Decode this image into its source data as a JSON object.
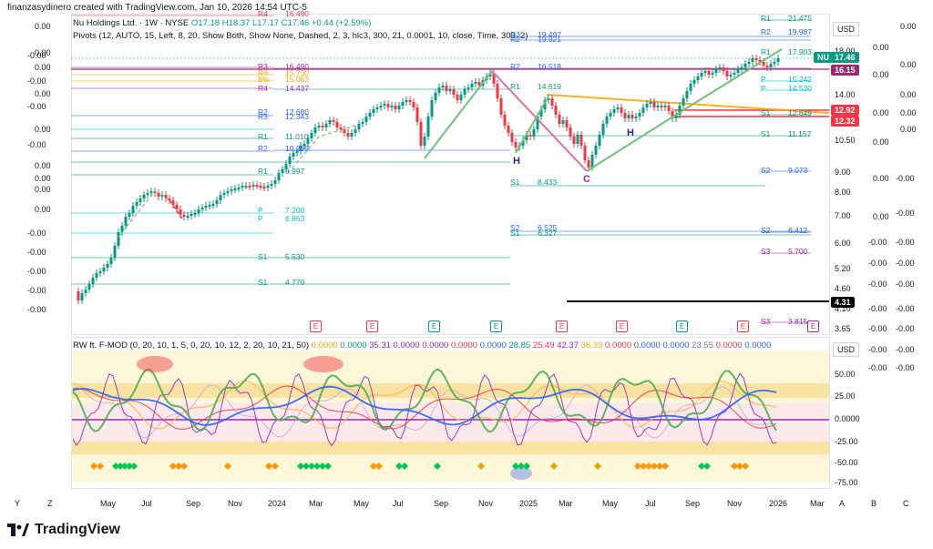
{
  "header": {
    "meta": "finanzasydinero created with TradingView.com, Jan 10, 2026 14:54 UTC-5"
  },
  "legend": {
    "symbol": "Nu Holdings Ltd. · 1W · NYSE",
    "ohlc": "O17.18  H18.37  L17.17  C17.46  +0.44 (+2.59%)",
    "pivots": "Pivots (12, AUTO, 15, Left, 8, 20, Show Both, Show None, Dashed, 2, 3, hlc3, 300, 21, 0.0001, 10, close, Time, 300, 2)"
  },
  "indicator": {
    "name": "RW ft. F-MOD (0, 20, 10, 1, 5, 0, 20, 10, 12, 2, 20, 10, 21, 50)",
    "values": [
      "0.0000",
      "0.0000",
      "35.31",
      "0.0000",
      "0.0000",
      "0.0000",
      "0.0000",
      "28.85",
      "25.49",
      "42.37",
      "36.33",
      "0.0000",
      "0.0000",
      "0.0000",
      "23.55",
      "0.0000",
      "0.0000"
    ],
    "value_colors": [
      "#f7a600",
      "#089981",
      "#9c27b0",
      "#9c27b0",
      "#9c27b0",
      "#f23645",
      "#2962ff",
      "#089981",
      "#f23645",
      "#9c27b0",
      "#f7a600",
      "#f23645",
      "#2962ff",
      "#2962ff",
      "#787b86",
      "#f23645",
      "#2962ff"
    ],
    "axis": [
      "50.00",
      "25.00",
      "0.0000",
      "-25.00",
      "-50.00",
      "-75.00"
    ]
  },
  "price_axis": {
    "currency": "USD",
    "ticks": [
      "18.00",
      "16.00",
      "14.00",
      "12.00",
      "10.50",
      "9.00",
      "8.00",
      "7.00",
      "6.00",
      "5.20",
      "4.60",
      "4.10",
      "3.65"
    ],
    "last_price": "17.46",
    "symbol_pill": "NU",
    "pills": [
      {
        "text": "16.15",
        "color": "#9c2a6b"
      },
      {
        "text": "12.92",
        "color": "#f23645"
      },
      {
        "text": "12.32",
        "color": "#f23645"
      },
      {
        "text": "4.31",
        "color": "#000000"
      }
    ]
  },
  "left_axis": [
    "0.00",
    "0.00",
    "0.00",
    "0.00",
    "0.00",
    "0.00",
    "0.00",
    "0.00",
    "0.00",
    "-0.00",
    "-0.00",
    "-0.00",
    "-0.00",
    "-0.00",
    "-0.00",
    "-0.00",
    "-0.00",
    "-0.00"
  ],
  "right_outer_axis_a": [
    "0.00",
    "0.00",
    "0.00",
    "0.00",
    "0.00",
    "0.00",
    "-0.00",
    "-0.00",
    "-0.00",
    "-0.00",
    "-0.00",
    "-0.00",
    "-0.00"
  ],
  "right_outer_axis_b": [
    "0.00",
    "0.00",
    "0.00",
    "0.00",
    "0.00",
    "-0.00",
    "-0.00",
    "-0.00",
    "-0.00",
    "-0.00",
    "-0.00",
    "-0.00",
    "-0.00",
    "-0.00"
  ],
  "pivot_labels": [
    {
      "t": "R4",
      "v": "16.490"
    },
    {
      "t": "R3",
      "v": "16.490"
    },
    {
      "t": "R6",
      "v": "15.730"
    },
    {
      "t": "8%",
      "v": "15.063"
    },
    {
      "t": "R4",
      "v": "14.437"
    },
    {
      "t": "R2",
      "v": "12.680"
    },
    {
      "t": "R3",
      "v": "12.343"
    },
    {
      "t": "R1",
      "v": "11.010"
    },
    {
      "t": "R2",
      "v": "10.259"
    },
    {
      "t": "R1",
      "v": "8.997"
    },
    {
      "t": "P",
      "v": "7.200"
    },
    {
      "t": "P",
      "v": "6.863"
    },
    {
      "t": "S1",
      "v": "5.530"
    },
    {
      "t": "S1",
      "v": "4.770"
    },
    {
      "t": "R2",
      "v": "16.518"
    },
    {
      "t": "R1",
      "v": "14.619"
    },
    {
      "t": "S1",
      "v": "8.433"
    },
    {
      "t": "S2",
      "v": "6.525"
    },
    {
      "t": "S1",
      "v": "6.327"
    },
    {
      "t": "R3",
      "v": "19.497"
    },
    {
      "t": "R2",
      "v": "19.921"
    },
    {
      "t": "R1",
      "v": "21.475"
    },
    {
      "t": "R2",
      "v": "19.987"
    },
    {
      "t": "R1",
      "v": "17.903"
    },
    {
      "t": "P",
      "v": "15.242"
    },
    {
      "t": "P",
      "v": "14.530"
    },
    {
      "t": "S1",
      "v": "12.649"
    },
    {
      "t": "S1",
      "v": "11.157"
    },
    {
      "t": "S2",
      "v": "9.073"
    },
    {
      "t": "S2",
      "v": "6.412"
    },
    {
      "t": "S3",
      "v": "5.700"
    },
    {
      "t": "S3",
      "v": "3.815"
    }
  ],
  "pattern_labels": [
    "H",
    "C",
    "H"
  ],
  "time_axis": [
    "Y",
    "Z",
    "May",
    "Jul",
    "Sep",
    "Nov",
    "2024",
    "Mar",
    "May",
    "Jul",
    "Sep",
    "Nov",
    "2025",
    "Mar",
    "May",
    "Jul",
    "Sep",
    "Nov",
    "2026",
    "Mar",
    "A",
    "B",
    "C"
  ],
  "earnings_marker": "E",
  "brand": "TradingView"
}
